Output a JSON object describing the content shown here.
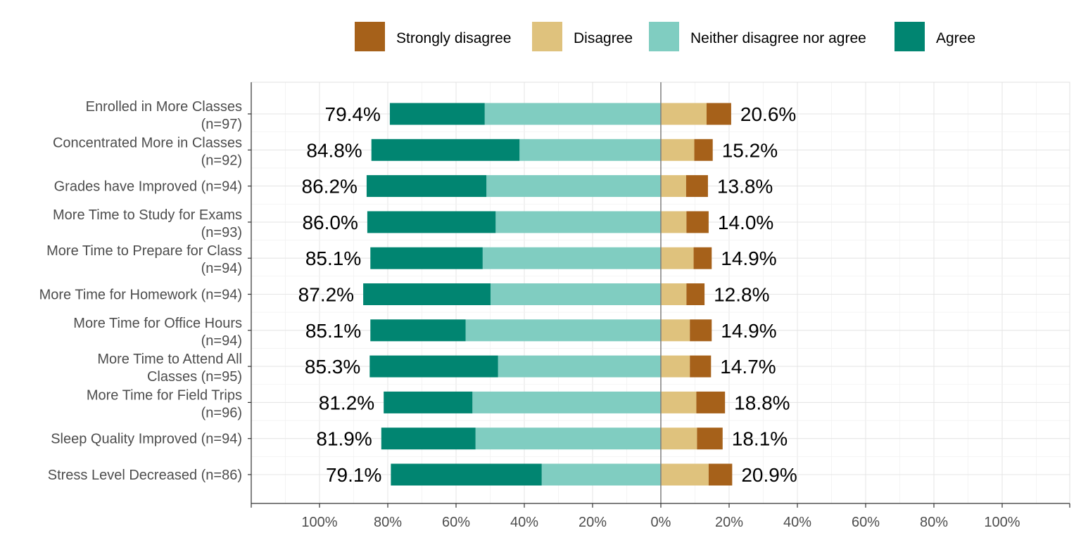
{
  "chart_data": {
    "type": "bar",
    "orientation": "horizontal-diverging",
    "legend": {
      "position": "top",
      "entries": [
        {
          "name": "Strongly disagree",
          "color": "#A6611A"
        },
        {
          "name": "Disagree",
          "color": "#DFC27D"
        },
        {
          "name": "Neither disagree nor agree",
          "color": "#80CDC1"
        },
        {
          "name": "Agree",
          "color": "#018571"
        }
      ]
    },
    "categories": [
      [
        "Enrolled in More Classes",
        "(n=97)"
      ],
      [
        "Concentrated More in Classes",
        "(n=92)"
      ],
      [
        "Grades have Improved (n=94)"
      ],
      [
        "More Time to Study for Exams",
        "(n=93)"
      ],
      [
        "More Time to Prepare for Class",
        "(n=94)"
      ],
      [
        "More Time for Homework (n=94)"
      ],
      [
        "More Time for Office Hours",
        "(n=94)"
      ],
      [
        "More Time to Attend All",
        "Classes (n=95)"
      ],
      [
        "More Time for Field Trips",
        "(n=96)"
      ],
      [
        "Sleep Quality Improved (n=94)"
      ],
      [
        "Stress Level Decreased (n=86)"
      ]
    ],
    "series": [
      {
        "name": "Agree",
        "color": "#018571",
        "side": "left",
        "values": [
          27.8,
          43.4,
          35.1,
          37.6,
          32.9,
          37.3,
          27.9,
          37.6,
          26.0,
          27.6,
          44.2
        ]
      },
      {
        "name": "Neither disagree nor agree",
        "color": "#80CDC1",
        "side": "left",
        "values": [
          51.6,
          41.4,
          51.1,
          48.4,
          52.2,
          49.9,
          57.2,
          47.7,
          55.2,
          54.3,
          34.9
        ]
      },
      {
        "name": "Disagree",
        "color": "#DFC27D",
        "side": "right",
        "values": [
          13.4,
          9.8,
          7.4,
          7.5,
          9.6,
          7.5,
          8.5,
          8.5,
          10.4,
          10.6,
          14.0
        ]
      },
      {
        "name": "Strongly disagree",
        "color": "#A6611A",
        "side": "right",
        "values": [
          7.2,
          5.4,
          6.4,
          6.5,
          5.3,
          5.3,
          6.4,
          6.2,
          8.4,
          7.5,
          6.9
        ]
      }
    ],
    "left_labels": [
      "79.4%",
      "84.8%",
      "86.2%",
      "86.0%",
      "85.1%",
      "87.2%",
      "85.1%",
      "85.3%",
      "81.2%",
      "81.9%",
      "79.1%"
    ],
    "right_labels": [
      "20.6%",
      "15.2%",
      "13.8%",
      "14.0%",
      "14.9%",
      "12.8%",
      "14.9%",
      "14.7%",
      "18.8%",
      "18.1%",
      "20.9%"
    ],
    "x_ticks": [
      {
        "value": -100,
        "label": "100%"
      },
      {
        "value": -80,
        "label": "80%"
      },
      {
        "value": -60,
        "label": "60%"
      },
      {
        "value": -40,
        "label": "40%"
      },
      {
        "value": -20,
        "label": "20%"
      },
      {
        "value": 0,
        "label": "0%"
      },
      {
        "value": 20,
        "label": "20%"
      },
      {
        "value": 40,
        "label": "40%"
      },
      {
        "value": 60,
        "label": "60%"
      },
      {
        "value": 80,
        "label": "80%"
      },
      {
        "value": 100,
        "label": "100%"
      }
    ],
    "xlim": [
      -120,
      120
    ],
    "grid": true
  }
}
